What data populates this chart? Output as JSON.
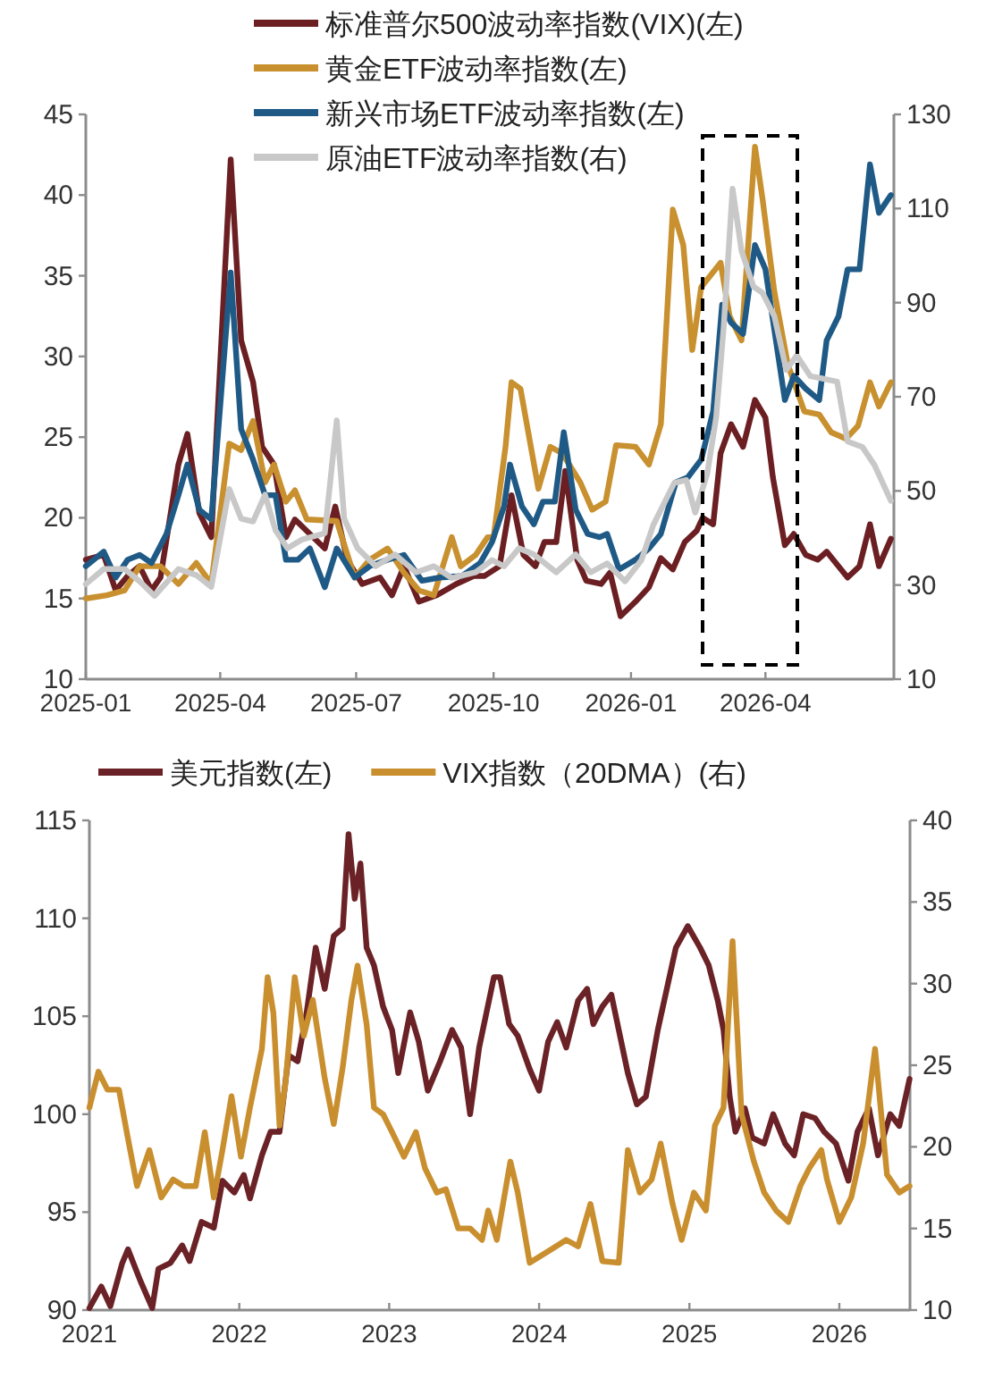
{
  "chart_data": [
    {
      "type": "line",
      "legend": "top",
      "xlim": [
        "2025-01-01",
        "2026-06-26"
      ],
      "xticks": [
        {
          "value": "2025-01-01",
          "label": "2025-01"
        },
        {
          "value": "2025-04-01",
          "label": "2025-04"
        },
        {
          "value": "2025-07-01",
          "label": "2025-07"
        },
        {
          "value": "2025-10-01",
          "label": "2025-10"
        },
        {
          "value": "2026-01-01",
          "label": "2026-01"
        },
        {
          "value": "2026-04-01",
          "label": "2026-04"
        }
      ],
      "ylim": [
        10,
        45
      ],
      "yticks": [
        10,
        15,
        20,
        25,
        30,
        35,
        40,
        45
      ],
      "y2lim": [
        10,
        130
      ],
      "y2ticks": [
        10,
        30,
        50,
        70,
        90,
        110,
        130
      ],
      "series": [
        {
          "name": "标准普尔500波动率指数(VIX)(左)",
          "color": "#6b1f22",
          "axis": "y",
          "x": [
            "2025-01-01",
            "2025-01-13",
            "2025-01-21",
            "2025-01-29",
            "2025-02-06",
            "2025-02-14",
            "2025-02-20",
            "2025-03-04",
            "2025-03-10",
            "2025-03-18",
            "2025-03-26",
            "2025-04-08",
            "2025-04-15",
            "2025-04-23",
            "2025-04-29",
            "2025-05-07",
            "2025-05-15",
            "2025-05-21",
            "2025-05-31",
            "2025-06-10",
            "2025-06-17",
            "2025-06-25",
            "2025-07-05",
            "2025-07-17",
            "2025-07-25",
            "2025-08-02",
            "2025-08-12",
            "2025-08-24",
            "2025-09-06",
            "2025-09-18",
            "2025-09-25",
            "2025-10-05",
            "2025-10-13",
            "2025-10-21",
            "2025-10-29",
            "2025-11-04",
            "2025-11-12",
            "2025-11-18",
            "2025-11-26",
            "2025-12-02",
            "2025-12-12",
            "2025-12-18",
            "2025-12-25",
            "2026-01-04",
            "2026-01-13",
            "2026-01-21",
            "2026-01-29",
            "2026-02-06",
            "2026-02-14",
            "2026-02-18",
            "2026-02-25",
            "2026-03-02",
            "2026-03-09",
            "2026-03-17",
            "2026-03-25",
            "2026-04-01",
            "2026-04-06",
            "2026-04-14",
            "2026-04-20",
            "2026-04-28",
            "2026-05-06",
            "2026-05-12",
            "2026-05-26",
            "2026-06-03",
            "2026-06-10",
            "2026-06-16",
            "2026-06-24"
          ],
          "values": [
            17.4,
            17.7,
            15.5,
            16.4,
            17,
            15.5,
            16.3,
            23.3,
            25.2,
            20.3,
            18.8,
            42.2,
            31,
            28.4,
            24.4,
            23.3,
            18.8,
            19.9,
            19,
            18.1,
            20.7,
            17.4,
            15.9,
            16.3,
            15.2,
            17,
            14.8,
            15.2,
            15.9,
            16.4,
            16.4,
            17,
            21.4,
            17.7,
            17,
            18.5,
            18.5,
            22.9,
            17.4,
            16.1,
            15.9,
            16.6,
            13.9,
            14.8,
            15.7,
            17.5,
            16.8,
            18.5,
            19.2,
            20,
            19.6,
            24,
            25.8,
            24.4,
            27.3,
            26.2,
            22.5,
            18.3,
            19,
            17.7,
            17.4,
            17.9,
            16.3,
            17,
            19.6,
            17,
            18.7
          ]
        },
        {
          "name": "黄金ETF波动率指数(左)",
          "color": "#c8902e",
          "axis": "y",
          "x": [
            "2025-01-01",
            "2025-01-15",
            "2025-01-27",
            "2025-02-06",
            "2025-02-20",
            "2025-03-04",
            "2025-03-16",
            "2025-03-26",
            "2025-04-07",
            "2025-04-15",
            "2025-04-23",
            "2025-05-01",
            "2025-05-07",
            "2025-05-15",
            "2025-05-21",
            "2025-05-29",
            "2025-06-18",
            "2025-06-30",
            "2025-07-10",
            "2025-07-22",
            "2025-08-02",
            "2025-08-12",
            "2025-08-22",
            "2025-09-03",
            "2025-09-09",
            "2025-09-19",
            "2025-09-27",
            "2025-10-01",
            "2025-10-09",
            "2025-10-13",
            "2025-10-19",
            "2025-10-31",
            "2025-11-08",
            "2025-11-16",
            "2025-11-28",
            "2025-12-06",
            "2025-12-15",
            "2025-12-22",
            "2026-01-04",
            "2026-01-13",
            "2026-01-21",
            "2026-01-29",
            "2026-02-05",
            "2026-02-11",
            "2026-02-17",
            "2026-03-02",
            "2026-03-08",
            "2026-03-16",
            "2026-03-25",
            "2026-03-30",
            "2026-04-07",
            "2026-04-16",
            "2026-04-27",
            "2026-05-07",
            "2026-05-15",
            "2026-05-25",
            "2026-06-02",
            "2026-06-10",
            "2026-06-16",
            "2026-06-24"
          ],
          "values": [
            15,
            15.2,
            15.5,
            17,
            17,
            15.9,
            17.2,
            15.9,
            24.6,
            24.2,
            26,
            22.2,
            23.3,
            21,
            21.7,
            19.9,
            19.8,
            16.3,
            17.4,
            18.1,
            16.6,
            15.5,
            15.2,
            18.8,
            17,
            17.7,
            18.8,
            18.8,
            24.4,
            28.4,
            28,
            21.8,
            24.4,
            24,
            22.2,
            20.5,
            21,
            24.5,
            24.4,
            23.3,
            25.8,
            39.1,
            36.9,
            30.4,
            34.3,
            35.8,
            32.5,
            31,
            43,
            39.8,
            34,
            29.5,
            26.6,
            26.4,
            25.3,
            24.9,
            25.7,
            28.4,
            26.9,
            28.4
          ]
        },
        {
          "name": "新兴市场ETF波动率指数(左)",
          "color": "#1f5a86",
          "axis": "y",
          "x": [
            "2025-01-01",
            "2025-01-13",
            "2025-01-21",
            "2025-01-29",
            "2025-02-06",
            "2025-02-14",
            "2025-02-24",
            "2025-03-04",
            "2025-03-10",
            "2025-03-18",
            "2025-03-26",
            "2025-04-08",
            "2025-04-15",
            "2025-04-23",
            "2025-05-01",
            "2025-05-08",
            "2025-05-15",
            "2025-05-23",
            "2025-05-31",
            "2025-06-10",
            "2025-06-18",
            "2025-06-30",
            "2025-07-10",
            "2025-07-22",
            "2025-08-02",
            "2025-08-14",
            "2025-08-26",
            "2025-09-10",
            "2025-09-22",
            "2025-09-30",
            "2025-10-08",
            "2025-10-12",
            "2025-10-20",
            "2025-10-28",
            "2025-11-03",
            "2025-11-11",
            "2025-11-17",
            "2025-11-25",
            "2025-12-03",
            "2025-12-11",
            "2025-12-16",
            "2025-12-24",
            "2026-01-04",
            "2026-01-13",
            "2026-01-21",
            "2026-01-31",
            "2026-02-08",
            "2026-02-17",
            "2026-02-25",
            "2026-03-03",
            "2026-03-09",
            "2026-03-17",
            "2026-03-25",
            "2026-04-01",
            "2026-04-08",
            "2026-04-14",
            "2026-04-20",
            "2026-04-28",
            "2026-05-07",
            "2026-05-12",
            "2026-05-20",
            "2026-05-26",
            "2026-06-03",
            "2026-06-10",
            "2026-06-16",
            "2026-06-24"
          ],
          "values": [
            17,
            17.9,
            16.3,
            17.4,
            17.7,
            17.2,
            19,
            21.4,
            23.3,
            20.5,
            19.9,
            35.2,
            25.5,
            23.6,
            21.4,
            21.4,
            17.4,
            17.4,
            18.1,
            15.7,
            18.1,
            16.3,
            17,
            17.4,
            17.7,
            16.1,
            16.3,
            16.4,
            17.2,
            18.5,
            20.7,
            23.3,
            20.7,
            19.6,
            21,
            21,
            25.3,
            20.5,
            19,
            18.8,
            19,
            16.8,
            17.4,
            18.1,
            19,
            22.2,
            22.5,
            23.6,
            26.6,
            33.2,
            32.1,
            31.4,
            36.9,
            35.4,
            31,
            27.3,
            28.8,
            28,
            27.3,
            31,
            32.5,
            35.4,
            35.4,
            41.9,
            38.9,
            40
          ]
        },
        {
          "name": "原油ETF波动率指数(右)",
          "color": "#c8c8c8",
          "axis": "y2",
          "x": [
            "2025-01-01",
            "2025-01-13",
            "2025-01-27",
            "2025-02-06",
            "2025-02-16",
            "2025-03-04",
            "2025-03-16",
            "2025-03-26",
            "2025-04-07",
            "2025-04-15",
            "2025-04-23",
            "2025-05-01",
            "2025-05-08",
            "2025-05-16",
            "2025-05-26",
            "2025-06-10",
            "2025-06-18",
            "2025-06-23",
            "2025-07-02",
            "2025-07-14",
            "2025-07-27",
            "2025-08-10",
            "2025-08-22",
            "2025-09-03",
            "2025-09-19",
            "2025-09-30",
            "2025-10-08",
            "2025-10-18",
            "2025-10-28",
            "2025-11-12",
            "2025-11-25",
            "2025-12-05",
            "2025-12-16",
            "2025-12-28",
            "2026-01-08",
            "2026-01-16",
            "2026-01-24",
            "2026-01-30",
            "2026-02-07",
            "2026-02-13",
            "2026-02-21",
            "2026-02-27",
            "2026-03-04",
            "2026-03-10",
            "2026-03-16",
            "2026-03-24",
            "2026-03-30",
            "2026-04-07",
            "2026-04-15",
            "2026-04-22",
            "2026-05-01",
            "2026-05-10",
            "2026-05-19",
            "2026-05-26",
            "2026-06-05",
            "2026-06-13",
            "2026-06-24"
          ],
          "values": [
            30.2,
            33.4,
            33.4,
            30.8,
            27.7,
            33.4,
            32.1,
            29.6,
            50.4,
            44.1,
            43.5,
            49.2,
            41.6,
            37.8,
            39.7,
            41,
            65,
            44.1,
            37.8,
            34,
            36.5,
            32.7,
            34,
            31.5,
            32.7,
            35.3,
            34,
            37.8,
            36.5,
            32.7,
            36.5,
            32.7,
            34.6,
            30.8,
            35.3,
            42.8,
            47.9,
            51.7,
            52.3,
            45.4,
            53.6,
            65.6,
            84.5,
            114.2,
            101,
            93.4,
            92.1,
            87.1,
            75.7,
            78.8,
            74.4,
            73.8,
            73.2,
            60.5,
            59.3,
            55.5,
            47.9
          ]
        }
      ]
    },
    {
      "type": "line",
      "legend": "top",
      "xlim": [
        "2021-01-01",
        "2026-06-22"
      ],
      "xticks": [
        {
          "value": "2021-01-01",
          "label": "2021"
        },
        {
          "value": "2022-01-01",
          "label": "2022"
        },
        {
          "value": "2023-01-01",
          "label": "2023"
        },
        {
          "value": "2024-01-01",
          "label": "2024"
        },
        {
          "value": "2025-01-01",
          "label": "2025"
        },
        {
          "value": "2026-01-01",
          "label": "2026"
        }
      ],
      "ylim": [
        90,
        115
      ],
      "yticks": [
        90,
        95,
        100,
        105,
        110,
        115
      ],
      "y2lim": [
        10,
        40
      ],
      "y2ticks": [
        10,
        15,
        20,
        25,
        30,
        35,
        40
      ],
      "series": [
        {
          "name": "美元指数(左)",
          "color": "#6b2226",
          "axis": "y",
          "x": [
            "2021-01-01",
            "2021-01-30",
            "2021-02-21",
            "2021-03-22",
            "2021-04-05",
            "2021-05-05",
            "2021-06-03",
            "2021-06-18",
            "2021-07-17",
            "2021-08-15",
            "2021-09-02",
            "2021-10-01",
            "2021-10-31",
            "2021-11-21",
            "2021-12-20",
            "2022-01-12",
            "2022-01-27",
            "2022-02-25",
            "2022-03-18",
            "2022-04-09",
            "2022-05-01",
            "2022-05-23",
            "2022-06-14",
            "2022-07-06",
            "2022-07-28",
            "2022-08-19",
            "2022-09-10",
            "2022-09-24",
            "2022-10-09",
            "2022-10-23",
            "2022-11-07",
            "2022-11-25",
            "2022-12-17",
            "2023-01-08",
            "2023-01-23",
            "2023-02-21",
            "2023-03-14",
            "2023-04-05",
            "2023-05-05",
            "2023-06-03",
            "2023-06-25",
            "2023-07-17",
            "2023-08-08",
            "2023-09-13",
            "2023-09-28",
            "2023-10-20",
            "2023-11-10",
            "2023-12-09",
            "2024-01-01",
            "2024-01-23",
            "2024-02-14",
            "2024-03-07",
            "2024-04-05",
            "2024-04-27",
            "2024-05-12",
            "2024-06-03",
            "2024-06-25",
            "2024-07-13",
            "2024-08-04",
            "2024-08-26",
            "2024-09-17",
            "2024-10-16",
            "2024-11-07",
            "2024-11-29",
            "2024-12-28",
            "2025-01-27",
            "2025-02-17",
            "2025-03-11",
            "2025-03-25",
            "2025-04-09",
            "2025-04-23",
            "2025-05-16",
            "2025-06-03",
            "2025-07-02",
            "2025-07-24",
            "2025-08-22",
            "2025-09-13",
            "2025-10-05",
            "2025-11-03",
            "2025-11-25",
            "2025-12-24",
            "2026-01-23",
            "2026-02-14",
            "2026-03-14",
            "2026-04-05",
            "2026-05-05",
            "2026-05-27",
            "2026-06-21"
          ],
          "values": [
            90.1,
            91.2,
            90.2,
            92.4,
            93.1,
            91.5,
            90.1,
            92.1,
            92.4,
            93.3,
            92.5,
            94.5,
            94.2,
            96.6,
            96,
            96.9,
            95.7,
            97.9,
            99.1,
            99.1,
            103,
            102.7,
            105.2,
            108.5,
            106.4,
            109.1,
            109.5,
            114.3,
            111,
            112.8,
            108.5,
            107.6,
            105.5,
            104.3,
            102.1,
            105.2,
            103.7,
            101.2,
            102.7,
            104.3,
            103.4,
            100,
            103.4,
            107,
            107,
            104.6,
            104,
            102.3,
            101.2,
            103.7,
            104.7,
            103.4,
            105.8,
            106.4,
            104.6,
            105.5,
            106.1,
            104.3,
            102.1,
            100.5,
            100.9,
            104.3,
            106.4,
            108.5,
            109.6,
            108.5,
            107.6,
            105.8,
            104.3,
            100.9,
            99.1,
            100.3,
            98.8,
            98.5,
            100,
            98.5,
            97.9,
            100,
            99.8,
            99.1,
            98.5,
            96.6,
            99.1,
            100.3,
            97.9,
            100,
            99.4,
            101.8
          ]
        },
        {
          "name": "VIX指数（20DMA）(右)",
          "color": "#c98f2f",
          "axis": "y2",
          "x": [
            "2021-01-01",
            "2021-01-23",
            "2021-02-14",
            "2021-03-14",
            "2021-04-05",
            "2021-04-27",
            "2021-05-27",
            "2021-06-25",
            "2021-07-24",
            "2021-08-19",
            "2021-09-17",
            "2021-10-09",
            "2021-10-31",
            "2021-11-21",
            "2021-12-13",
            "2022-01-05",
            "2022-01-27",
            "2022-02-25",
            "2022-03-11",
            "2022-03-25",
            "2022-04-09",
            "2022-04-23",
            "2022-05-16",
            "2022-06-07",
            "2022-06-29",
            "2022-07-28",
            "2022-08-19",
            "2022-09-10",
            "2022-10-01",
            "2022-10-16",
            "2022-11-07",
            "2022-11-25",
            "2022-12-17",
            "2023-01-08",
            "2023-02-06",
            "2023-03-07",
            "2023-03-29",
            "2023-04-27",
            "2023-05-19",
            "2023-06-18",
            "2023-07-17",
            "2023-08-15",
            "2023-08-30",
            "2023-09-20",
            "2023-10-23",
            "2023-11-10",
            "2023-12-09",
            "2024-01-23",
            "2024-03-07",
            "2024-04-05",
            "2024-05-05",
            "2024-06-03",
            "2024-07-13",
            "2024-08-04",
            "2024-09-02",
            "2024-10-01",
            "2024-10-23",
            "2024-11-21",
            "2024-12-13",
            "2025-01-12",
            "2025-02-10",
            "2025-03-04",
            "2025-03-25",
            "2025-04-16",
            "2025-05-08",
            "2025-06-07",
            "2025-07-02",
            "2025-07-31",
            "2025-08-30",
            "2025-09-28",
            "2025-10-20",
            "2025-11-18",
            "2025-12-02",
            "2026-01-01",
            "2026-01-30",
            "2026-02-28",
            "2026-03-29",
            "2026-04-27",
            "2026-05-27",
            "2026-06-21"
          ],
          "values": [
            22.4,
            24.6,
            23.5,
            23.5,
            20.5,
            17.6,
            19.8,
            16.9,
            18,
            17.6,
            17.6,
            20.9,
            16.9,
            19.8,
            23.1,
            19.4,
            22.4,
            26,
            30.4,
            28.2,
            21.3,
            23.8,
            30.4,
            26.8,
            29,
            24.2,
            21.4,
            24.9,
            29,
            31.1,
            27.5,
            22.4,
            22,
            20.9,
            19.4,
            20.9,
            18.7,
            17.2,
            17.4,
            15,
            15,
            14.3,
            16.1,
            14.3,
            19.1,
            17.2,
            12.9,
            13.6,
            14.3,
            13.9,
            16.5,
            13,
            12.9,
            19.8,
            17.2,
            18,
            20.2,
            16.5,
            14.3,
            17.2,
            16.1,
            21.3,
            22.4,
            32.6,
            22,
            19.1,
            17.2,
            16.1,
            15.4,
            17.6,
            18.7,
            19.8,
            18,
            15.4,
            16.9,
            20.2,
            26,
            18.3,
            17.2,
            17.6
          ]
        }
      ]
    }
  ]
}
